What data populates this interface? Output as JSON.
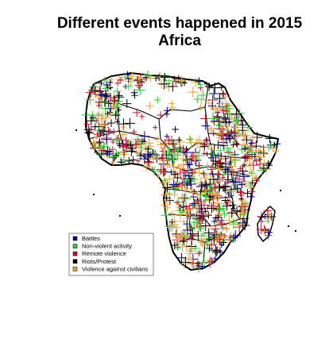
{
  "title": {
    "line1": "Different events happened in 2015",
    "line2": "Africa"
  },
  "legend": [
    {
      "label": "Battles",
      "color": "#00008b"
    },
    {
      "label": "Non-violent activity",
      "color": "#32cd32"
    },
    {
      "label": "Remote violence",
      "color": "#c8102e"
    },
    {
      "label": "Riots/Protest",
      "color": "#000000"
    },
    {
      "label": "Violence against civilians",
      "color": "#e8a33d"
    }
  ],
  "map": {
    "region": "Africa",
    "year": 2015,
    "marker": "cross",
    "land_fill": "#ffffff",
    "border_color": "#000000"
  }
}
